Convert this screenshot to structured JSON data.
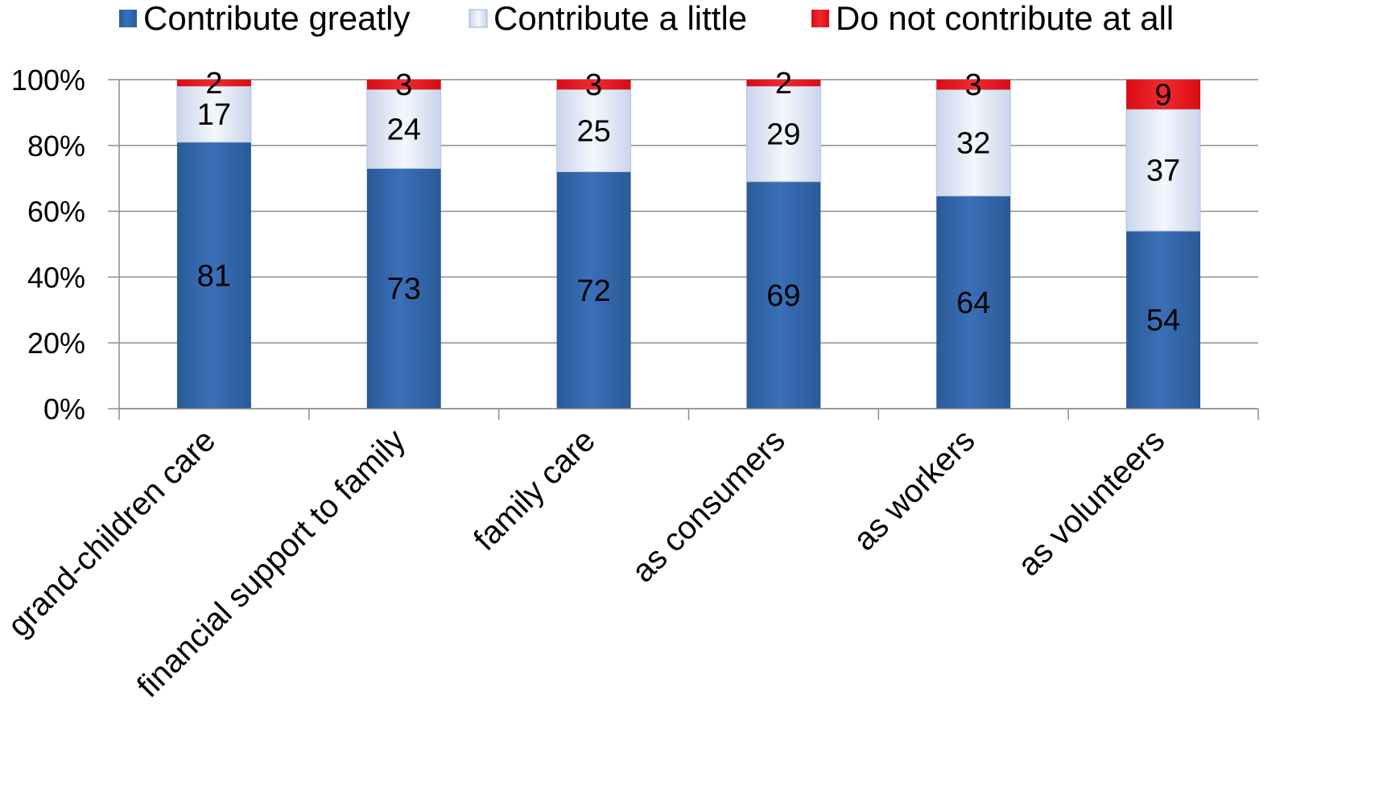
{
  "chart_data": {
    "type": "bar",
    "stacked": true,
    "normalized": true,
    "categories": [
      "grand-children care",
      "financial support to family",
      "family care",
      "as consumers",
      "as workers",
      "as volunteers"
    ],
    "series": [
      {
        "name": "Contribute greatly",
        "values": [
          81,
          73,
          72,
          69,
          64,
          54
        ],
        "color": "#2f64a8"
      },
      {
        "name": "Contribute a little",
        "values": [
          17,
          24,
          25,
          29,
          32,
          37
        ],
        "color": "#dfe6f4"
      },
      {
        "name": "Do not contribute at all",
        "values": [
          2,
          3,
          3,
          2,
          3,
          9
        ],
        "color": "#e8141c"
      }
    ],
    "ylim": [
      0,
      100
    ],
    "yticks": [
      "0%",
      "20%",
      "40%",
      "60%",
      "80%",
      "100%"
    ],
    "xlabel": "",
    "ylabel": "",
    "grid": true,
    "legend": "top"
  }
}
